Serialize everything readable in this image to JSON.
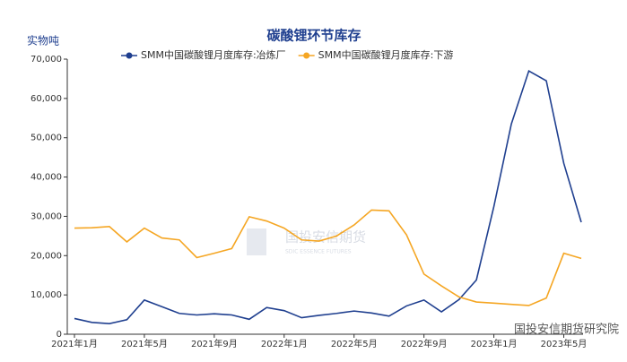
{
  "chart_data": {
    "type": "line",
    "title": "碳酸锂环节库存",
    "y_label": "实物吨",
    "categories": [
      "2021年1月",
      null,
      null,
      null,
      "2021年5月",
      null,
      null,
      null,
      "2021年9月",
      null,
      null,
      null,
      "2022年1月",
      null,
      null,
      null,
      "2022年5月",
      null,
      null,
      null,
      "2022年9月",
      null,
      null,
      null,
      "2023年1月",
      null,
      null,
      null,
      "2023年5月",
      null
    ],
    "series": [
      {
        "name": "SMM中国碳酸锂月度库存:冶炼厂",
        "color": "#1f3f8f",
        "values": [
          4000,
          3000,
          2700,
          3700,
          8700,
          7000,
          5300,
          4900,
          5200,
          4900,
          3800,
          6800,
          6000,
          4200,
          4800,
          5300,
          5900,
          5400,
          4600,
          7200,
          8700,
          5700,
          8800,
          13800,
          32500,
          53500,
          67000,
          64500,
          43500,
          28500
        ]
      },
      {
        "name": "SMM中国碳酸锂月度库存:下游",
        "color": "#f5a623",
        "values": [
          27000,
          27100,
          27400,
          23500,
          27000,
          24500,
          24000,
          19500,
          20600,
          21800,
          29900,
          28800,
          27000,
          24000,
          23700,
          25000,
          27800,
          31600,
          31400,
          25300,
          15300,
          12300,
          9500,
          8200,
          7900,
          7600,
          7300,
          9200,
          20600,
          19300
        ]
      }
    ],
    "ylim": [
      0,
      70000
    ],
    "yticks": [
      0,
      {
        "value": 10000,
        "label": "10,000"
      },
      {
        "value": 20000,
        "label": "20,000"
      },
      {
        "value": 30000,
        "label": "30,000"
      },
      {
        "value": 40000,
        "label": "40,000"
      },
      {
        "value": 50000,
        "label": "50,000"
      },
      {
        "value": 60000,
        "label": "60,000"
      },
      {
        "value": 70000,
        "label": "70,000"
      }
    ],
    "legend": "top",
    "watermark": "国投安信期货",
    "watermark_sub": "SDIC ESSENCE FUTURES",
    "source_mark": "国投安信期货研究院"
  }
}
